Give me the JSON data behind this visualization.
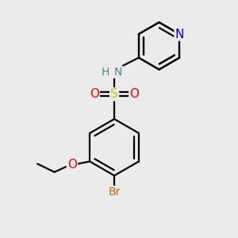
{
  "bg_color": "#ebebeb",
  "bond_color": "#000000",
  "bond_width": 1.6,
  "dbo": 0.09,
  "atom_colors": {
    "N_nh": "#4a8a8a",
    "H": "#4a8a8a",
    "N_py": "#0000ff",
    "S": "#cccc00",
    "O": "#ff0000",
    "Br": "#cc6600",
    "C": "#000000"
  },
  "font_size": 10
}
